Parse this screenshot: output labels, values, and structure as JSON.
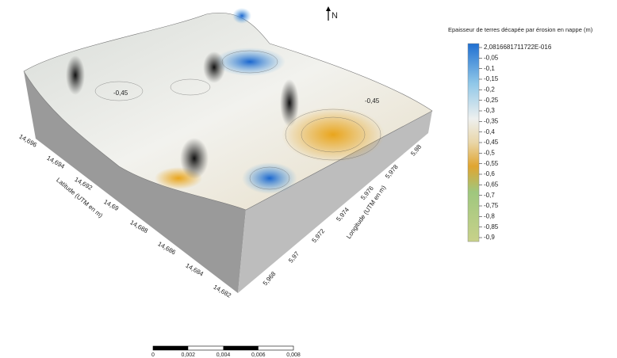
{
  "north": "N",
  "legend": {
    "title": "Epaisseur de terres décapée par érosion en nappe (m)",
    "ticks": [
      "2,0816681711722E-016",
      "-0,05",
      "-0,1",
      "-0,15",
      "-0,2",
      "-0,25",
      "-0,3",
      "-0,35",
      "-0,4",
      "-0,45",
      "-0,5",
      "-0,55",
      "-0,6",
      "-0,65",
      "-0,7",
      "-0,75",
      "-0,8",
      "-0,85",
      "-0,9"
    ]
  },
  "latitude": {
    "title": "Latitude (UTM en m)",
    "ticks": [
      "14,696",
      "14,694",
      "14,692",
      "14,69",
      "14,688",
      "14,686",
      "14,684",
      "14,682"
    ]
  },
  "longitude": {
    "title": "Longitude (UTM en m)",
    "ticks": [
      "5,968",
      "5,97",
      "5,972",
      "5,974",
      "5,976",
      "5,978",
      "5,98"
    ]
  },
  "contour_labels": [
    "-0,45",
    "-0,45"
  ],
  "scale_bar": [
    "0",
    "0,002",
    "0,004",
    "0,006",
    "0,008"
  ]
}
